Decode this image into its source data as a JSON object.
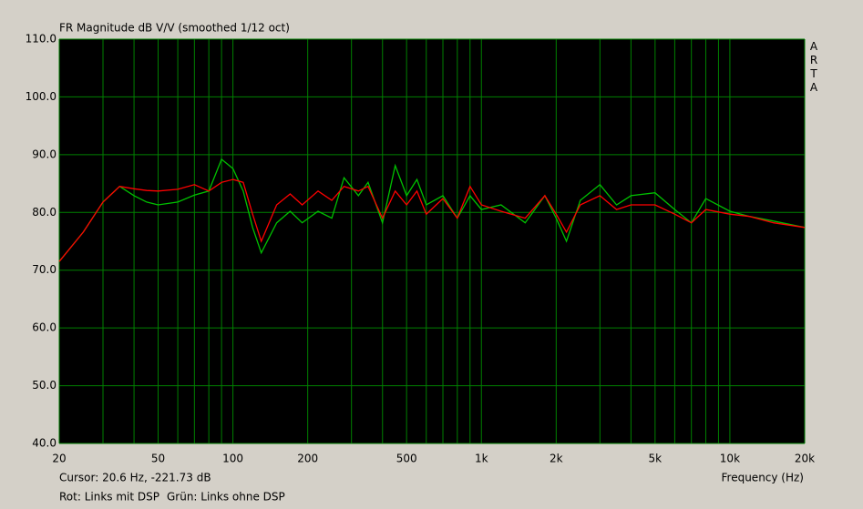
{
  "chart_data": {
    "type": "line",
    "title": "FR Magnitude dB V/V (smoothed 1/12 oct)",
    "brand": "ARTA",
    "cursor": "Cursor: 20.6 Hz, -221.73 dB",
    "x_label": "Frequency (Hz)",
    "log_x": true,
    "grid": true,
    "xlim": [
      20,
      20000
    ],
    "ylim": [
      40,
      110
    ],
    "xticks": [
      20,
      50,
      100,
      200,
      500,
      {
        "value": 1000,
        "label": "1k"
      },
      {
        "value": 2000,
        "label": "2k"
      },
      {
        "value": 5000,
        "label": "5k"
      },
      {
        "value": 10000,
        "label": "10k"
      },
      {
        "value": 20000,
        "label": "20k"
      }
    ],
    "xminor": [
      30,
      40,
      60,
      70,
      80,
      90,
      300,
      400,
      600,
      700,
      800,
      900,
      3000,
      4000,
      6000,
      7000,
      8000,
      9000
    ],
    "yticks": [
      {
        "value": 40,
        "label": "40.0"
      },
      {
        "value": 50,
        "label": "50.0"
      },
      {
        "value": 60,
        "label": "60.0"
      },
      {
        "value": 70,
        "label": "70.0"
      },
      {
        "value": 80,
        "label": "80.0"
      },
      {
        "value": 90,
        "label": "90.0"
      },
      {
        "value": 100,
        "label": "100.0"
      },
      {
        "value": 110,
        "label": "110.0"
      }
    ],
    "x": [
      20,
      25,
      30,
      35,
      40,
      45,
      50,
      60,
      70,
      80,
      90,
      100,
      110,
      120,
      130,
      150,
      170,
      190,
      220,
      250,
      280,
      320,
      350,
      400,
      450,
      500,
      550,
      600,
      700,
      800,
      900,
      1000,
      1200,
      1500,
      1800,
      2000,
      2200,
      2500,
      3000,
      3500,
      4000,
      5000,
      6000,
      7000,
      8000,
      10000,
      12000,
      15000,
      20000
    ],
    "series": [
      {
        "name": "Grün: Links ohne DSP",
        "color": "#00c000",
        "values": [
          71.5,
          76.6,
          81.8,
          84.5,
          82.9,
          81.8,
          81.3,
          81.8,
          83,
          83.7,
          89.2,
          87.6,
          83.7,
          77.4,
          73,
          78.2,
          80.2,
          78.2,
          80.2,
          79,
          86,
          82.9,
          85.2,
          78.2,
          88.1,
          82.9,
          85.7,
          81.3,
          82.9,
          79,
          82.9,
          80.5,
          81.3,
          78.2,
          82.9,
          79,
          75,
          82.1,
          84.8,
          81.3,
          82.9,
          83.4,
          80.5,
          78.2,
          82.4,
          80.2,
          79.3,
          78.5,
          77.4
        ]
      },
      {
        "name": "Rot: Links mit DSP",
        "color": "#ff0000",
        "values": [
          71.5,
          76.6,
          81.8,
          84.5,
          84.1,
          83.8,
          83.7,
          84,
          84.8,
          83.7,
          85.2,
          85.7,
          85.2,
          79.7,
          75,
          81.3,
          83.2,
          81.3,
          83.7,
          82.1,
          84.5,
          83.7,
          84.5,
          79,
          83.7,
          81.3,
          83.7,
          79.7,
          82.4,
          79,
          84.5,
          81.3,
          80.2,
          79,
          82.9,
          79.7,
          76.6,
          81.3,
          82.9,
          80.5,
          81.3,
          81.3,
          79.7,
          78.2,
          80.5,
          79.7,
          79.3,
          78.2,
          77.4
        ]
      }
    ]
  }
}
